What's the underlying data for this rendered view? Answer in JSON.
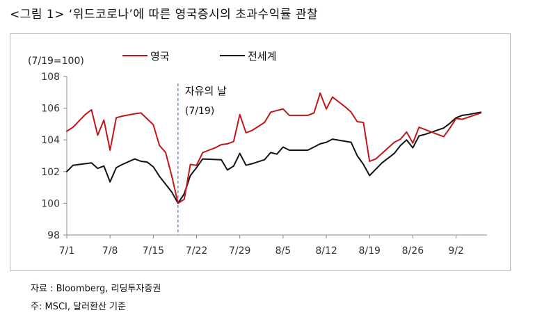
{
  "title": "<그림 1> ‘위드코로나’에 따른 영국증시의 초과수익률 관찰",
  "source": "자료 : Bloomberg, 리딩투자증권",
  "note": "주: MSCI, 달러환산 기준",
  "colors": {
    "uk": "#c0161b",
    "world": "#111111",
    "event": "#4a72b8",
    "axis": "#888888"
  },
  "chart_data": {
    "type": "line",
    "ylabel": "(7/19=100)",
    "ylim": [
      98,
      108
    ],
    "yticks": [
      98,
      100,
      102,
      104,
      106,
      108
    ],
    "xticks": [
      "7/1",
      "7/8",
      "7/15",
      "7/22",
      "7/29",
      "8/5",
      "8/12",
      "8/19",
      "8/26",
      "9/2"
    ],
    "xtick_days": [
      0,
      7,
      14,
      21,
      28,
      35,
      42,
      49,
      56,
      63
    ],
    "legend_position": "top",
    "grid": false,
    "annotation": {
      "label": "자유의 날",
      "sublabel": "(7/19)",
      "x_day": 18
    },
    "series": [
      {
        "name": "영국",
        "color": "#c0161b",
        "points": [
          [
            0,
            104.55
          ],
          [
            1,
            104.8
          ],
          [
            2,
            105.2
          ],
          [
            3,
            105.6
          ],
          [
            4,
            105.9
          ],
          [
            5,
            104.3
          ],
          [
            6,
            105.25
          ],
          [
            7,
            103.35
          ],
          [
            8,
            105.4
          ],
          [
            9,
            105.5
          ],
          [
            11,
            105.65
          ],
          [
            12,
            105.7
          ],
          [
            14,
            104.95
          ],
          [
            15,
            103.65
          ],
          [
            16,
            103.2
          ],
          [
            17,
            101.7
          ],
          [
            18,
            100.0
          ],
          [
            19,
            100.25
          ],
          [
            20,
            102.45
          ],
          [
            21,
            102.4
          ],
          [
            22,
            103.2
          ],
          [
            23,
            103.35
          ],
          [
            24,
            103.5
          ],
          [
            25,
            103.7
          ],
          [
            26,
            103.75
          ],
          [
            27,
            103.9
          ],
          [
            28,
            105.6
          ],
          [
            29,
            104.45
          ],
          [
            30,
            104.6
          ],
          [
            32,
            105.1
          ],
          [
            33,
            105.75
          ],
          [
            35,
            105.95
          ],
          [
            36,
            105.55
          ],
          [
            39,
            105.55
          ],
          [
            40,
            105.7
          ],
          [
            41,
            106.95
          ],
          [
            42,
            105.95
          ],
          [
            43,
            106.7
          ],
          [
            44,
            106.4
          ],
          [
            45,
            106.1
          ],
          [
            46,
            105.75
          ],
          [
            47,
            105.15
          ],
          [
            48,
            105.1
          ],
          [
            49,
            102.65
          ],
          [
            50,
            102.8
          ],
          [
            51,
            103.15
          ],
          [
            52,
            103.5
          ],
          [
            53,
            103.85
          ],
          [
            54,
            104.05
          ],
          [
            55,
            104.5
          ],
          [
            56,
            103.8
          ],
          [
            57,
            104.8
          ],
          [
            58,
            104.65
          ],
          [
            59,
            104.5
          ],
          [
            61,
            104.2
          ],
          [
            62,
            104.75
          ],
          [
            63,
            105.35
          ],
          [
            64,
            105.3
          ],
          [
            67,
            105.7
          ]
        ]
      },
      {
        "name": "전세계",
        "color": "#111111",
        "points": [
          [
            0,
            102.0
          ],
          [
            1,
            102.4
          ],
          [
            3,
            102.5
          ],
          [
            4,
            102.55
          ],
          [
            5,
            102.2
          ],
          [
            6,
            102.35
          ],
          [
            7,
            101.35
          ],
          [
            8,
            102.25
          ],
          [
            9,
            102.45
          ],
          [
            11,
            102.8
          ],
          [
            12,
            102.65
          ],
          [
            13,
            102.6
          ],
          [
            14,
            102.3
          ],
          [
            15,
            101.7
          ],
          [
            17,
            100.7
          ],
          [
            18,
            100.0
          ],
          [
            19,
            100.6
          ],
          [
            20,
            101.75
          ],
          [
            21,
            102.25
          ],
          [
            22,
            102.8
          ],
          [
            25,
            102.75
          ],
          [
            26,
            102.1
          ],
          [
            27,
            102.35
          ],
          [
            28,
            103.15
          ],
          [
            29,
            102.4
          ],
          [
            30,
            102.5
          ],
          [
            32,
            102.75
          ],
          [
            33,
            103.2
          ],
          [
            34,
            103.1
          ],
          [
            35,
            103.55
          ],
          [
            36,
            103.35
          ],
          [
            39,
            103.35
          ],
          [
            40,
            103.55
          ],
          [
            41,
            103.75
          ],
          [
            42,
            103.85
          ],
          [
            43,
            104.05
          ],
          [
            46,
            103.85
          ],
          [
            47,
            103.0
          ],
          [
            48,
            102.45
          ],
          [
            49,
            101.75
          ],
          [
            50,
            102.15
          ],
          [
            51,
            102.55
          ],
          [
            53,
            103.15
          ],
          [
            54,
            103.65
          ],
          [
            55,
            104.0
          ],
          [
            56,
            103.5
          ],
          [
            57,
            104.25
          ],
          [
            58,
            104.35
          ],
          [
            61,
            104.75
          ],
          [
            62,
            105.05
          ],
          [
            63,
            105.4
          ],
          [
            64,
            105.55
          ],
          [
            65,
            105.6
          ],
          [
            67,
            105.75
          ]
        ]
      }
    ]
  }
}
